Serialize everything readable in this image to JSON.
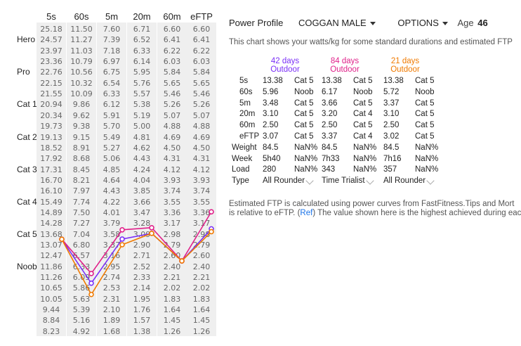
{
  "grid": {
    "columns": [
      "5s",
      "60s",
      "5m",
      "20m",
      "60m",
      "eFTP"
    ],
    "levels": [
      {
        "name": "Hero",
        "row": 1
      },
      {
        "name": "Pro",
        "row": 4
      },
      {
        "name": "Cat 1",
        "row": 7
      },
      {
        "name": "Cat 2",
        "row": 10
      },
      {
        "name": "Cat 3",
        "row": 13
      },
      {
        "name": "Cat 4",
        "row": 16
      },
      {
        "name": "Cat 5",
        "row": 19
      },
      {
        "name": "Noob",
        "row": 22
      }
    ],
    "rows": [
      [
        "25.18",
        "11.50",
        "7.60",
        "6.71",
        "6.60",
        "6.60"
      ],
      [
        "24.57",
        "11.27",
        "7.39",
        "6.52",
        "6.41",
        "6.41"
      ],
      [
        "23.97",
        "11.03",
        "7.18",
        "6.33",
        "6.22",
        "6.22"
      ],
      [
        "23.36",
        "10.79",
        "6.97",
        "6.14",
        "6.03",
        "6.03"
      ],
      [
        "22.76",
        "10.56",
        "6.75",
        "5.95",
        "5.84",
        "5.84"
      ],
      [
        "22.15",
        "10.32",
        "6.54",
        "5.76",
        "5.65",
        "5.65"
      ],
      [
        "21.55",
        "10.09",
        "6.33",
        "5.57",
        "5.46",
        "5.46"
      ],
      [
        "20.94",
        "9.86",
        "6.12",
        "5.38",
        "5.26",
        "5.26"
      ],
      [
        "20.34",
        "9.62",
        "5.91",
        "5.19",
        "5.07",
        "5.07"
      ],
      [
        "19.73",
        "9.38",
        "5.70",
        "5.00",
        "4.88",
        "4.88"
      ],
      [
        "19.13",
        "9.15",
        "5.49",
        "4.81",
        "4.69",
        "4.69"
      ],
      [
        "18.52",
        "8.91",
        "5.27",
        "4.62",
        "4.50",
        "4.50"
      ],
      [
        "17.92",
        "8.68",
        "5.06",
        "4.43",
        "4.31",
        "4.31"
      ],
      [
        "17.31",
        "8.45",
        "4.85",
        "4.24",
        "4.12",
        "4.12"
      ],
      [
        "16.70",
        "8.21",
        "4.64",
        "4.04",
        "3.93",
        "3.93"
      ],
      [
        "16.10",
        "7.97",
        "4.43",
        "3.85",
        "3.74",
        "3.74"
      ],
      [
        "15.49",
        "7.74",
        "4.22",
        "3.66",
        "3.55",
        "3.55"
      ],
      [
        "14.89",
        "7.50",
        "4.01",
        "3.47",
        "3.36",
        "3.36"
      ],
      [
        "14.28",
        "7.27",
        "3.79",
        "3.28",
        "3.17",
        "3.17"
      ],
      [
        "13.68",
        "7.04",
        "3.58",
        "3.09",
        "2.98",
        "2.98"
      ],
      [
        "13.07",
        "6.80",
        "3.37",
        "2.90",
        "2.79",
        "2.79"
      ],
      [
        "12.47",
        "6.57",
        "3.16",
        "2.71",
        "2.60",
        "2.60"
      ],
      [
        "11.86",
        "6.33",
        "2.95",
        "2.52",
        "2.40",
        "2.40"
      ],
      [
        "11.26",
        "6.09",
        "2.74",
        "2.33",
        "2.21",
        "2.21"
      ],
      [
        "10.65",
        "5.86",
        "2.53",
        "2.14",
        "2.02",
        "2.02"
      ],
      [
        "10.05",
        "5.63",
        "2.31",
        "1.95",
        "1.83",
        "1.83"
      ],
      [
        "9.44",
        "5.39",
        "2.10",
        "1.76",
        "1.64",
        "1.64"
      ],
      [
        "8.84",
        "5.16",
        "1.89",
        "1.57",
        "1.45",
        "1.45"
      ],
      [
        "8.23",
        "4.92",
        "1.68",
        "1.38",
        "1.26",
        "1.26"
      ]
    ]
  },
  "chart_data": {
    "type": "line",
    "series": [
      {
        "color": "#7b2ff7",
        "values": [
          13.38,
          5.96,
          3.48,
          3.1,
          2.5,
          3.07
        ]
      },
      {
        "color": "#e0218a",
        "values": [
          13.38,
          6.17,
          3.66,
          3.2,
          2.5,
          3.37
        ]
      },
      {
        "color": "#f07a00",
        "values": [
          13.38,
          5.72,
          3.37,
          3.1,
          2.5,
          3.02
        ]
      }
    ]
  },
  "header": {
    "title": "Power Profile",
    "profile_select": "COGGAN MALE",
    "options_label": "OPTIONS",
    "age_label": "Age",
    "age_value": "46",
    "description": "This chart shows your watts/kg for some standard durations and estimated FTP"
  },
  "periods": [
    {
      "days": "42 days",
      "type": "Outdoor",
      "color": "#7b2ff7"
    },
    {
      "days": "84 days",
      "type": "Outdoor",
      "color": "#e0218a"
    },
    {
      "days": "21 days",
      "type": "Outdoor",
      "color": "#f07a00"
    }
  ],
  "stats_rows": [
    {
      "label": "5s",
      "cells": [
        [
          "13.38",
          "Cat 5"
        ],
        [
          "13.38",
          "Cat 5"
        ],
        [
          "13.38",
          "Cat 5"
        ]
      ]
    },
    {
      "label": "60s",
      "cells": [
        [
          "5.96",
          "Noob"
        ],
        [
          "6.17",
          "Noob"
        ],
        [
          "5.72",
          "Noob"
        ]
      ]
    },
    {
      "label": "5m",
      "cells": [
        [
          "3.48",
          "Cat 5"
        ],
        [
          "3.66",
          "Cat 5"
        ],
        [
          "3.37",
          "Cat 5"
        ]
      ]
    },
    {
      "label": "20m",
      "cells": [
        [
          "3.10",
          "Cat 5"
        ],
        [
          "3.20",
          "Cat 4"
        ],
        [
          "3.10",
          "Cat 5"
        ]
      ]
    },
    {
      "label": "60m",
      "cells": [
        [
          "2.50",
          "Cat 5"
        ],
        [
          "2.50",
          "Cat 5"
        ],
        [
          "2.50",
          "Cat 5"
        ]
      ]
    },
    {
      "label": "eFTP",
      "cells": [
        [
          "3.07",
          "Cat 5"
        ],
        [
          "3.37",
          "Cat 4"
        ],
        [
          "3.02",
          "Cat 5"
        ]
      ]
    },
    {
      "label": "Weight",
      "cells": [
        [
          "84.5",
          "NaN%"
        ],
        [
          "84.5",
          "NaN%"
        ],
        [
          "84.5",
          "NaN%"
        ]
      ]
    },
    {
      "label": "Week",
      "cells": [
        [
          "5h40",
          "NaN%"
        ],
        [
          "7h33",
          "NaN%"
        ],
        [
          "7h16",
          "NaN%"
        ]
      ]
    },
    {
      "label": "Load",
      "cells": [
        [
          "280",
          "NaN%"
        ],
        [
          "343",
          "NaN%"
        ],
        [
          "357",
          "NaN%"
        ]
      ]
    }
  ],
  "type_row": {
    "label": "Type",
    "values": [
      "All Rounder",
      "Time Trialist",
      "All Rounder"
    ]
  },
  "footer": {
    "line1": "Estimated FTP is calculated using power curves from FastFitness.Tips and Mort",
    "line2_pre": "is relative to eFTP. (",
    "ref_label": "Ref",
    "line2_post": ") The value shown here is the highest achieved during eac"
  }
}
